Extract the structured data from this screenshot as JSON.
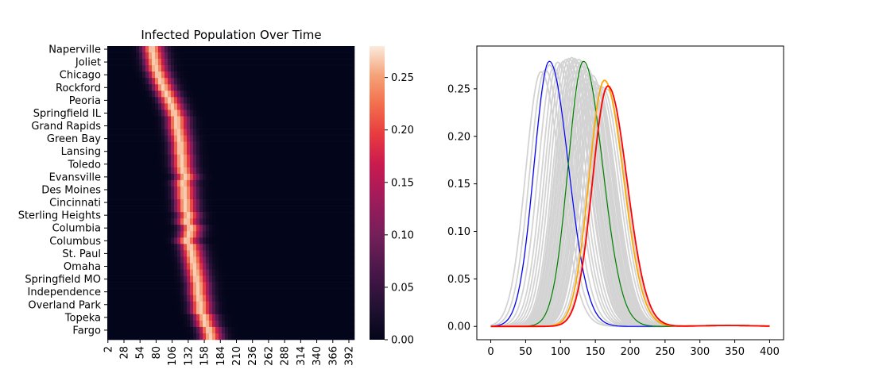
{
  "chart_data": [
    {
      "type": "heatmap",
      "title": "Infected Population Over Time",
      "xlabel": "",
      "ylabel": "",
      "colormap": "rocket",
      "colorbar": {
        "ticks": [
          0.0,
          0.05,
          0.1,
          0.15,
          0.2,
          0.25
        ],
        "tick_labels": [
          "0.00",
          "0.05",
          "0.10",
          "0.15",
          "0.20",
          "0.25"
        ],
        "vmin": 0.0,
        "vmax": 0.28
      },
      "x_tick_labels": [
        "2",
        "28",
        "54",
        "80",
        "106",
        "132",
        "158",
        "184",
        "210",
        "236",
        "262",
        "288",
        "314",
        "340",
        "366",
        "392"
      ],
      "time_range": [
        0,
        400
      ],
      "rows": [
        {
          "label": "Naperville",
          "peak_day": 72
        },
        {
          "peak_day": 74
        },
        {
          "label": "Joliet",
          "peak_day": 76
        },
        {
          "peak_day": 78
        },
        {
          "label": "Chicago",
          "peak_day": 82
        },
        {
          "peak_day": 86
        },
        {
          "label": "Rockford",
          "peak_day": 90
        },
        {
          "peak_day": 95
        },
        {
          "label": "Peoria",
          "peak_day": 100
        },
        {
          "peak_day": 104
        },
        {
          "label": "Springfield IL",
          "peak_day": 108
        },
        {
          "peak_day": 112
        },
        {
          "label": "Grand Rapids",
          "peak_day": 112
        },
        {
          "peak_day": 114
        },
        {
          "label": "Green Bay",
          "peak_day": 116
        },
        {
          "peak_day": 118
        },
        {
          "label": "Lansing",
          "peak_day": 118
        },
        {
          "peak_day": 120
        },
        {
          "label": "Toledo",
          "peak_day": 120
        },
        {
          "peak_day": 122
        },
        {
          "label": "Evansville",
          "peak_day": 126
        },
        {
          "peak_day": 122
        },
        {
          "label": "Des Moines",
          "peak_day": 124
        },
        {
          "peak_day": 124
        },
        {
          "label": "Cincinnati",
          "peak_day": 126
        },
        {
          "peak_day": 126
        },
        {
          "label": "Sterling Heights",
          "peak_day": 130
        },
        {
          "peak_day": 128
        },
        {
          "label": "Columbia",
          "peak_day": 134
        },
        {
          "peak_day": 132
        },
        {
          "label": "Columbus",
          "peak_day": 128
        },
        {
          "peak_day": 134
        },
        {
          "label": "St. Paul",
          "peak_day": 136
        },
        {
          "peak_day": 138
        },
        {
          "label": "Omaha",
          "peak_day": 140
        },
        {
          "peak_day": 142
        },
        {
          "label": "Springfield MO",
          "peak_day": 144
        },
        {
          "peak_day": 146
        },
        {
          "label": "Independence",
          "peak_day": 146
        },
        {
          "peak_day": 148
        },
        {
          "label": "Overland Park",
          "peak_day": 150
        },
        {
          "peak_day": 150
        },
        {
          "label": "Topeka",
          "peak_day": 156
        },
        {
          "peak_day": 158
        },
        {
          "label": "Fargo",
          "peak_day": 164
        },
        {
          "peak_day": 166
        }
      ]
    },
    {
      "type": "line",
      "title": "",
      "xlabel": "",
      "ylabel": "",
      "xlim": [
        -20,
        420
      ],
      "ylim": [
        -0.014,
        0.295
      ],
      "x_ticks": [
        0,
        50,
        100,
        150,
        200,
        250,
        300,
        350,
        400
      ],
      "y_ticks": [
        0.0,
        0.05,
        0.1,
        0.15,
        0.2,
        0.25
      ],
      "y_tick_labels": [
        "0.00",
        "0.05",
        "0.10",
        "0.15",
        "0.20",
        "0.25"
      ],
      "x_tick_labels": [
        "0",
        "50",
        "100",
        "150",
        "200",
        "250",
        "300",
        "350",
        "400"
      ],
      "background_series_color": "#d3d3d3",
      "background_series": [
        {
          "peak_day": 72,
          "peak": 0.268
        },
        {
          "peak_day": 78,
          "peak": 0.27
        },
        {
          "peak_day": 84,
          "peak": 0.275
        },
        {
          "peak_day": 90,
          "peak": 0.272
        },
        {
          "peak_day": 96,
          "peak": 0.278
        },
        {
          "peak_day": 100,
          "peak": 0.276
        },
        {
          "peak_day": 104,
          "peak": 0.279
        },
        {
          "peak_day": 108,
          "peak": 0.281
        },
        {
          "peak_day": 112,
          "peak": 0.282
        },
        {
          "peak_day": 114,
          "peak": 0.275
        },
        {
          "peak_day": 116,
          "peak": 0.283
        },
        {
          "peak_day": 118,
          "peak": 0.279
        },
        {
          "peak_day": 120,
          "peak": 0.282
        },
        {
          "peak_day": 122,
          "peak": 0.28
        },
        {
          "peak_day": 124,
          "peak": 0.277
        },
        {
          "peak_day": 126,
          "peak": 0.281
        },
        {
          "peak_day": 128,
          "peak": 0.276
        },
        {
          "peak_day": 130,
          "peak": 0.279
        },
        {
          "peak_day": 132,
          "peak": 0.274
        },
        {
          "peak_day": 134,
          "peak": 0.27
        },
        {
          "peak_day": 136,
          "peak": 0.268
        },
        {
          "peak_day": 138,
          "peak": 0.272
        },
        {
          "peak_day": 140,
          "peak": 0.266
        },
        {
          "peak_day": 142,
          "peak": 0.262
        },
        {
          "peak_day": 144,
          "peak": 0.26
        },
        {
          "peak_day": 146,
          "peak": 0.264
        },
        {
          "peak_day": 148,
          "peak": 0.258
        },
        {
          "peak_day": 150,
          "peak": 0.256
        },
        {
          "peak_day": 152,
          "peak": 0.255
        },
        {
          "peak_day": 156,
          "peak": 0.253
        },
        {
          "peak_day": 160,
          "peak": 0.252
        },
        {
          "peak_day": 166,
          "peak": 0.25
        }
      ],
      "series": [
        {
          "color": "#0000ff",
          "peak_day": 84,
          "peak": 0.279
        },
        {
          "color": "#008000",
          "peak_day": 133,
          "peak": 0.279
        },
        {
          "color": "#ffa500",
          "peak_day": 163,
          "peak": 0.259
        },
        {
          "color": "#ff0000",
          "peak_day": 168,
          "peak": 0.253
        }
      ]
    }
  ]
}
